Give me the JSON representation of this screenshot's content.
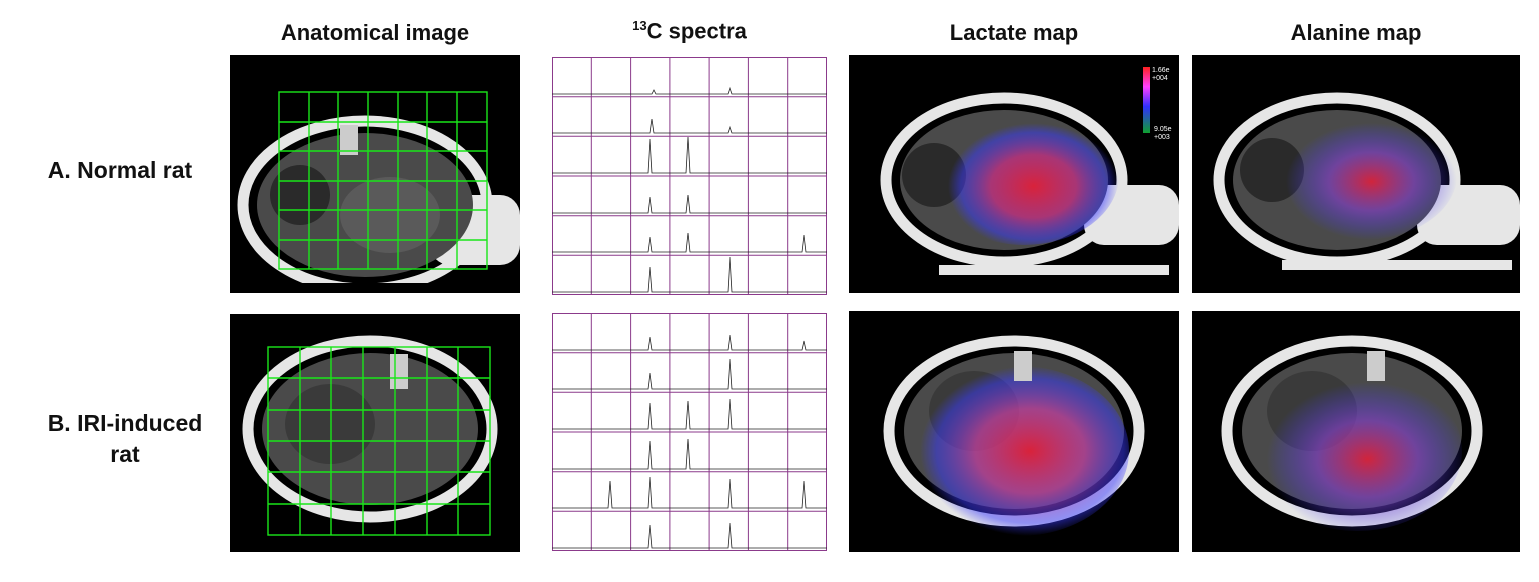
{
  "columns": {
    "anatomical": "Anatomical image",
    "spectra_superscript": "13",
    "spectra": "C spectra",
    "lactate": "Lactate map",
    "alanine": "Alanine map"
  },
  "rows": {
    "a": "A. Normal rat",
    "b_line1": "B. IRI-induced",
    "b_line2": "rat"
  },
  "colorbar": {
    "max_line1": "1.66e",
    "max_line2": "+004",
    "min_line1": "9.05e",
    "min_line2": "+003"
  },
  "grid": {
    "rows": 6,
    "cols": 7
  },
  "colors": {
    "grid_green": "#19e619",
    "spectra_frame": "#8b3a8b",
    "lactate": "#e0203a",
    "overlay_blue": "#3a3aff",
    "overlay_magenta": "#d040d0"
  }
}
